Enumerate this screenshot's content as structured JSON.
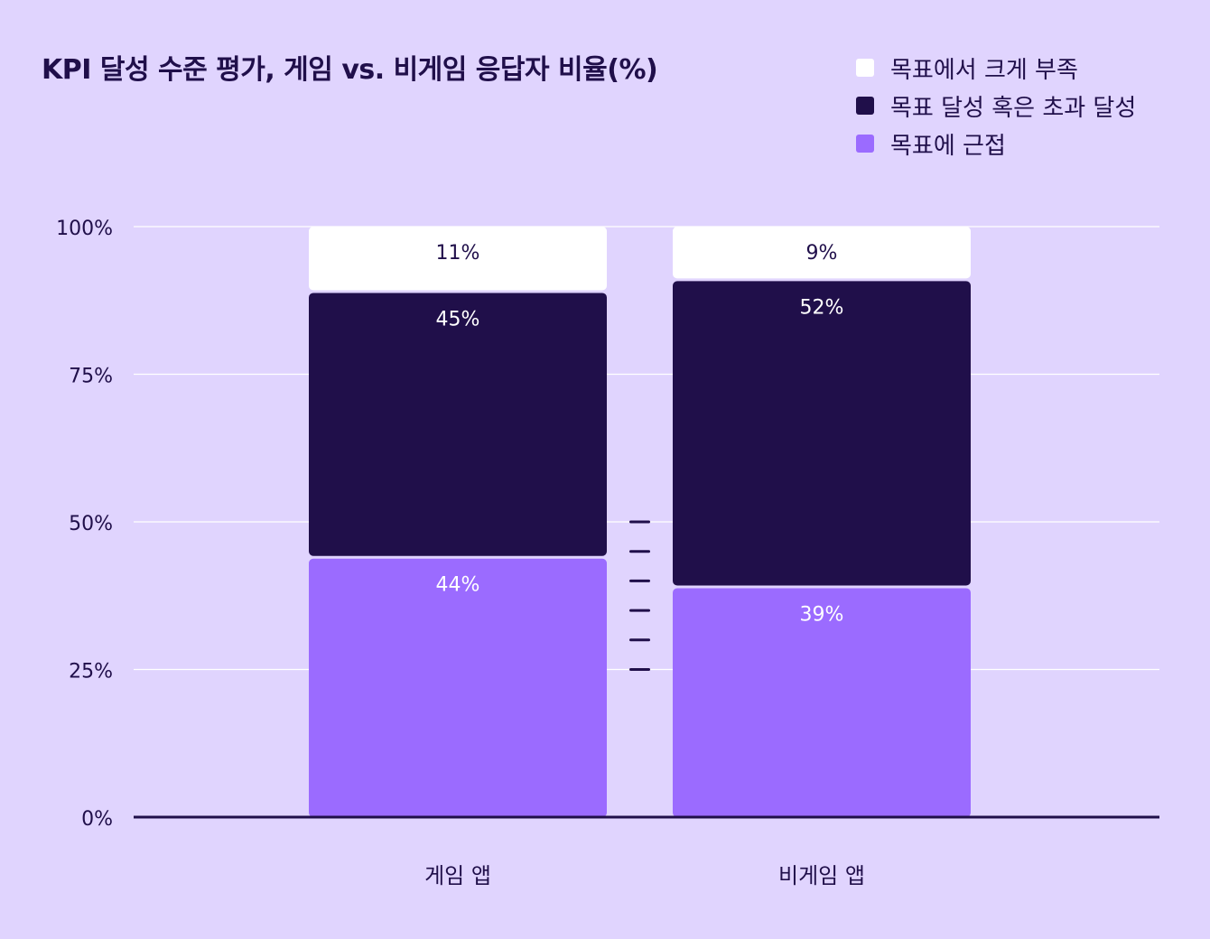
{
  "chart_data": {
    "type": "bar",
    "stacked": true,
    "title": "KPI 달성 수준 평가, 게임 vs. 비게임 응답자 비율(%)",
    "categories": [
      "게임 앱",
      "비게임 앱"
    ],
    "series": [
      {
        "name": "목표에 근접",
        "values": [
          44,
          39
        ],
        "color": "#9b6bff",
        "label_color": "#ffffff"
      },
      {
        "name": "목표 달성 혹은 초과 달성",
        "values": [
          45,
          52
        ],
        "color": "#200f4a",
        "label_color": "#ffffff"
      },
      {
        "name": "목표에서 크게 부족",
        "values": [
          11,
          9
        ],
        "color": "#ffffff",
        "label_color": "#200f4a"
      }
    ],
    "value_suffix": "%",
    "ylim": [
      0,
      100
    ],
    "yticks": [
      0,
      25,
      50,
      75,
      100
    ],
    "ytick_labels": [
      "0%",
      "25%",
      "50%",
      "75%",
      "100%"
    ],
    "grid": true,
    "legend_position": "top-right",
    "legend_order": [
      "목표에서 크게 부족",
      "목표 달성 혹은 초과 달성",
      "목표에 근접"
    ],
    "separator_between_bars": "dashed"
  },
  "colors": {
    "background": "#e0d4fe",
    "text": "#200f4a",
    "grid": "#ffffff",
    "axis": "#200f4a"
  }
}
